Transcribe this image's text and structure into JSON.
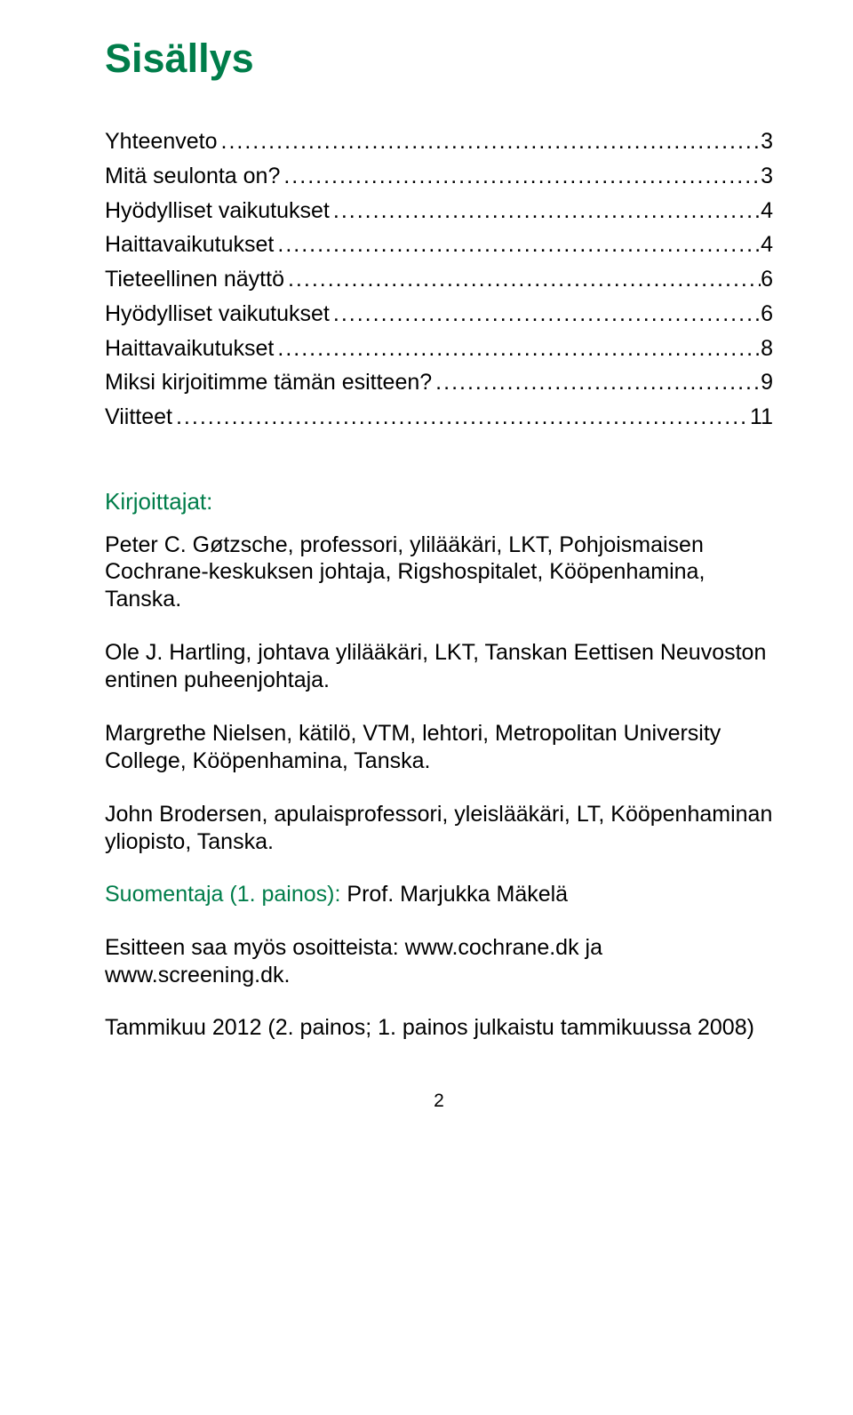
{
  "title": "Sisällys",
  "toc": [
    {
      "label": "Yhteenveto",
      "page": "3"
    },
    {
      "label": "Mitä seulonta on?",
      "page": "3"
    },
    {
      "label": "Hyödylliset vaikutukset",
      "page": "4"
    },
    {
      "label": "Haittavaikutukset",
      "page": "4"
    },
    {
      "label": "Tieteellinen näyttö",
      "page": "6"
    },
    {
      "label": "Hyödylliset vaikutukset",
      "page": "6"
    },
    {
      "label": "Haittavaikutukset",
      "page": "8"
    },
    {
      "label": "Miksi kirjoitimme tämän esitteen?",
      "page": "9"
    },
    {
      "label": "Viitteet",
      "page": "11"
    }
  ],
  "authors_heading": "Kirjoittajat:",
  "authors": [
    "Peter C. Gøtzsche, professori, ylilääkäri, LKT, Pohjoismaisen Cochrane-keskuksen johtaja, Rigshospitalet, Kööpenhamina, Tanska.",
    "Ole J. Hartling, johtava ylilääkäri, LKT, Tanskan Eettisen Neuvoston entinen puheenjohtaja.",
    "Margrethe Nielsen, kätilö, VTM, lehtori, Metropolitan University College, Kööpenhamina, Tanska.",
    "John Brodersen, apulaisprofessori, yleislääkäri, LT, Kööpenhaminan yliopisto, Tanska."
  ],
  "translator_label": "Suomentaja (1. painos): ",
  "translator_name": "Prof. Marjukka Mäkelä",
  "availability": "Esitteen saa myös osoitteista: www.cochrane.dk ja www.screening.dk.",
  "date_line": "Tammikuu 2012 (2. painos; 1. painos julkaistu tammikuussa 2008)",
  "page_number": "2",
  "colors": {
    "accent": "#007d4a",
    "text": "#000000",
    "background": "#ffffff"
  },
  "typography": {
    "title_fontsize": 45,
    "body_fontsize": 25,
    "heading_fontsize": 26,
    "pagenum_fontsize": 21,
    "font_family": "Arial"
  }
}
